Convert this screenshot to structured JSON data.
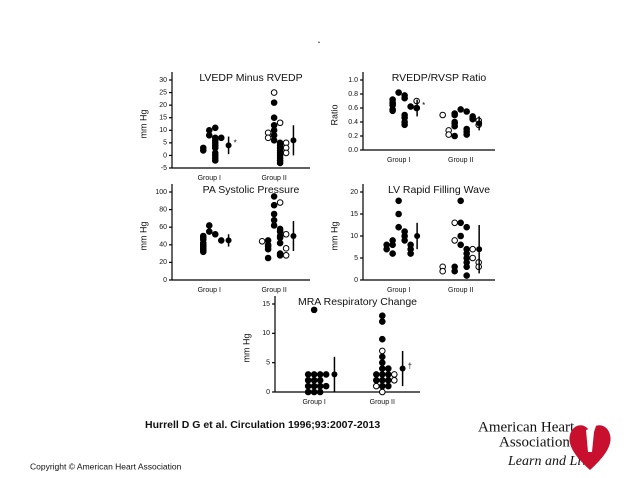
{
  "dot": ".",
  "citation": "Hurrell D G et al. Circulation 1996;93:2007-2013",
  "copyright": "Copyright © American Heart Association",
  "logo": {
    "lines": [
      "American Heart",
      "Association"
    ],
    "tagline": "Learn and Live"
  },
  "chart_data": [
    {
      "type": "strip",
      "title": "LVEDP Minus RVEDP",
      "ylabel": "mm Hg",
      "color": "#000000",
      "categories": [
        "Group I",
        "Group II"
      ],
      "ylim": [
        -5,
        30
      ],
      "yticks": [
        -5,
        0,
        5,
        10,
        15,
        20,
        25,
        30
      ],
      "groups": [
        {
          "filled": [
            10,
            11,
            8,
            7,
            6,
            5,
            4,
            3,
            3,
            2,
            1,
            0,
            -1,
            -2,
            7
          ],
          "open": [],
          "mean": 4,
          "sd": 3.5,
          "note": "*"
        },
        {
          "filled": [
            21,
            15,
            12,
            10,
            8,
            6,
            5,
            4,
            3,
            2,
            1,
            0,
            -1,
            -2,
            -3
          ],
          "open": [
            25,
            13,
            9,
            7,
            5,
            3,
            1
          ],
          "mean": 6,
          "sd": 6
        }
      ]
    },
    {
      "type": "strip",
      "title": "RVEDP/RVSP Ratio",
      "ylabel": "Ratio",
      "color": "#000000",
      "categories": [
        "Group I",
        "Group II"
      ],
      "ylim": [
        0,
        1
      ],
      "yticks": [
        {
          "value": 0,
          "label": "0.0"
        },
        0.2,
        0.4,
        0.6,
        0.8,
        {
          "value": 1,
          "label": "1.0"
        }
      ],
      "groups": [
        {
          "filled": [
            0.82,
            0.78,
            0.74,
            0.72,
            0.68,
            0.66,
            0.64,
            0.62,
            0.58,
            0.56,
            0.5,
            0.46,
            0.4,
            0.36
          ],
          "open": [
            0.7,
            0.6
          ],
          "mean": 0.6,
          "sd": 0.12,
          "note": "*"
        },
        {
          "filled": [
            0.58,
            0.55,
            0.52,
            0.5,
            0.48,
            0.46,
            0.44,
            0.4,
            0.38,
            0.34,
            0.3,
            0.26,
            0.22,
            0.2
          ],
          "open": [
            0.5,
            0.42,
            0.36,
            0.28,
            0.22
          ],
          "mean": 0.38,
          "sd": 0.1
        }
      ]
    },
    {
      "type": "strip",
      "title": "PA Systolic Pressure",
      "ylabel": "mm Hg",
      "color": "#000000",
      "categories": [
        "Group I",
        "Group II"
      ],
      "ylim": [
        0,
        100
      ],
      "yticks": [
        0,
        20,
        40,
        60,
        80,
        100
      ],
      "groups": [
        {
          "filled": [
            62,
            55,
            52,
            50,
            48,
            46,
            45,
            42,
            40,
            38,
            36,
            34,
            32
          ],
          "open": [],
          "mean": 45,
          "sd": 7
        },
        {
          "filled": [
            95,
            85,
            75,
            68,
            62,
            58,
            55,
            50,
            48,
            45,
            42,
            40,
            38,
            35,
            30,
            28,
            25
          ],
          "open": [
            88,
            52,
            44,
            36,
            28
          ],
          "mean": 50,
          "sd": 17
        }
      ]
    },
    {
      "type": "strip",
      "title": "LV Rapid Filling Wave",
      "ylabel": "mm Hg",
      "color": "#000000",
      "categories": [
        "Group I",
        "Group II"
      ],
      "ylim": [
        0,
        20
      ],
      "yticks": [
        0,
        5,
        10,
        15,
        20
      ],
      "groups": [
        {
          "filled": [
            18,
            15,
            12,
            11,
            10,
            9,
            9,
            8,
            8,
            8,
            7,
            7,
            6,
            6
          ],
          "open": [],
          "mean": 10,
          "sd": 3
        },
        {
          "filled": [
            18,
            13,
            12,
            10,
            8,
            7,
            6,
            5,
            4,
            3,
            3,
            2,
            1
          ],
          "open": [
            13,
            9,
            7,
            5,
            4,
            3,
            3,
            2
          ],
          "mean": 7,
          "sd": 5.5
        }
      ]
    },
    {
      "type": "strip",
      "title": "MRA Respiratory Change",
      "ylabel": "mm Hg",
      "color": "#000000",
      "categories": [
        "Group I",
        "Group II"
      ],
      "ylim": [
        0,
        15
      ],
      "yticks": [
        0,
        5,
        10,
        15
      ],
      "groups": [
        {
          "filled": [
            14,
            3,
            3,
            3,
            3,
            2,
            2,
            2,
            1,
            1,
            1,
            1,
            0,
            0,
            0
          ],
          "open": [],
          "mean": 3,
          "sd": 3
        },
        {
          "filled": [
            13,
            12,
            9,
            6,
            5,
            4,
            4,
            3,
            3,
            3,
            2,
            2,
            2,
            1,
            1
          ],
          "open": [
            7,
            3,
            2,
            1,
            0
          ],
          "mean": 4,
          "sd": 3,
          "note": "†"
        }
      ]
    }
  ]
}
